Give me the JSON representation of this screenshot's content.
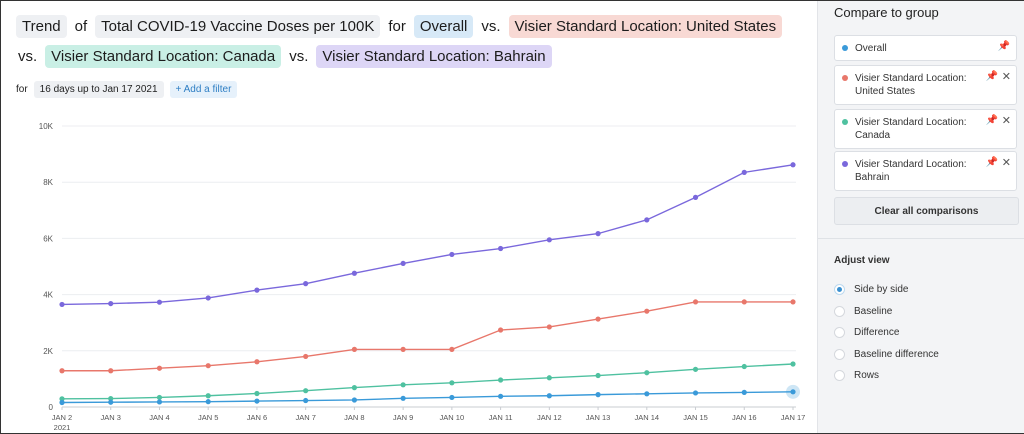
{
  "title": {
    "trend": "Trend",
    "of": "of",
    "metric": "Total COVID-19 Vaccine Doses per 100K",
    "for": "for",
    "overall": "Overall",
    "vs1": "vs.",
    "us": "Visier Standard Location: United States",
    "vs2": "vs.",
    "canada": "Visier Standard Location: Canada",
    "vs3": "vs.",
    "bahrain": "Visier Standard Location: Bahrain"
  },
  "filter": {
    "for": "for",
    "range": "16 days up to Jan 17 2021",
    "add": "+ Add a filter"
  },
  "sidebar": {
    "heading": "Compare to group",
    "groups": [
      {
        "label": "Overall",
        "color": "#3a9ad9"
      },
      {
        "label": "Visier Standard Location: United States",
        "color": "#e8776b"
      },
      {
        "label": "Visier Standard Location: Canada",
        "color": "#4fc1a0"
      },
      {
        "label": "Visier Standard Location: Bahrain",
        "color": "#7a68dc"
      }
    ],
    "clear_label": "Clear all comparisons",
    "adjust_heading": "Adjust view",
    "options": [
      {
        "label": "Side by side",
        "selected": true
      },
      {
        "label": "Baseline",
        "selected": false
      },
      {
        "label": "Difference",
        "selected": false
      },
      {
        "label": "Baseline difference",
        "selected": false
      },
      {
        "label": "Rows",
        "selected": false
      }
    ]
  },
  "chart_data": {
    "type": "line",
    "title": "",
    "xlabel": "",
    "ylabel": "",
    "ylim": [
      0,
      10000
    ],
    "yticks": [
      0,
      2000,
      4000,
      6000,
      8000,
      10000
    ],
    "ytick_labels": [
      "0",
      "2K",
      "4K",
      "6K",
      "8K",
      "10K"
    ],
    "categories": [
      "JAN 2",
      "JAN 3",
      "JAN 4",
      "JAN 5",
      "JAN 6",
      "JAN 7",
      "JAN 8",
      "JAN 9",
      "JAN 10",
      "JAN 11",
      "JAN 12",
      "JAN 13",
      "JAN 14",
      "JAN 15",
      "JAN 16",
      "JAN 17"
    ],
    "year_label": "2021",
    "grid": true,
    "series": [
      {
        "name": "Visier Standard Location: Bahrain",
        "color": "#7a68dc",
        "values": [
          3650,
          3680,
          3730,
          3880,
          4160,
          4390,
          4760,
          5110,
          5430,
          5640,
          5950,
          6170,
          6660,
          7460,
          8350,
          8620
        ]
      },
      {
        "name": "Visier Standard Location: United States",
        "color": "#e8776b",
        "values": [
          1290,
          1290,
          1380,
          1470,
          1610,
          1800,
          2050,
          2050,
          2050,
          2740,
          2850,
          3130,
          3410,
          3740,
          3740,
          3740
        ]
      },
      {
        "name": "Visier Standard Location: Canada",
        "color": "#4fc1a0",
        "values": [
          290,
          300,
          340,
          400,
          480,
          580,
          690,
          790,
          860,
          960,
          1040,
          1120,
          1220,
          1340,
          1440,
          1530
        ]
      },
      {
        "name": "Overall",
        "color": "#3a9ad9",
        "values": [
          160,
          170,
          180,
          190,
          210,
          230,
          250,
          310,
          340,
          380,
          400,
          440,
          470,
          500,
          520,
          540
        ]
      }
    ]
  }
}
